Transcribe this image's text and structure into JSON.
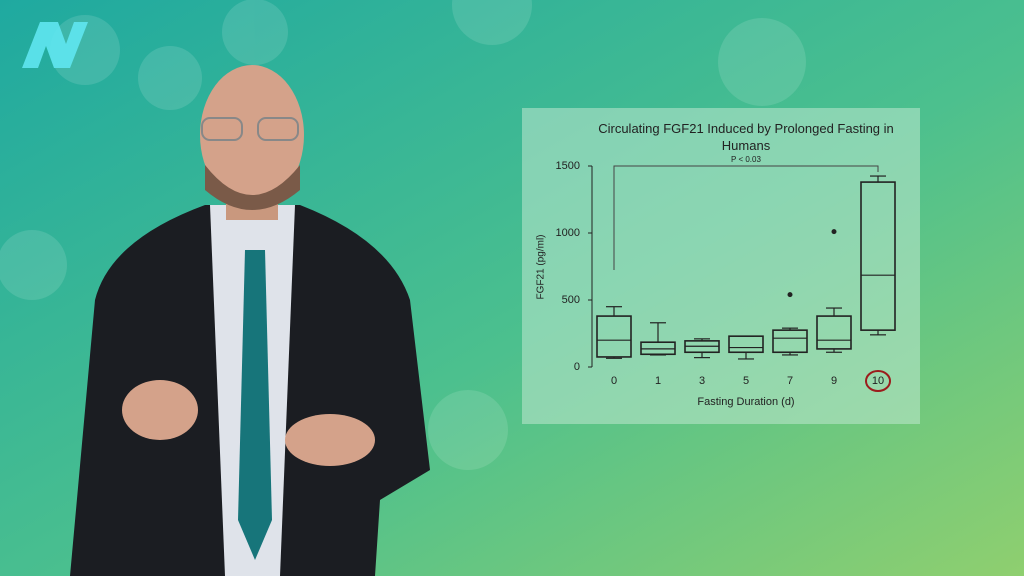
{
  "chart_data": {
    "type": "box",
    "title": "Circulating FGF21 Induced by Prolonged Fasting in Humans",
    "xlabel": "Fasting Duration (d)",
    "ylabel": "FGF21 (pg/ml)",
    "annotation": "P < 0.03",
    "categories": [
      "0",
      "1",
      "3",
      "5",
      "7",
      "9",
      "10"
    ],
    "boxes": [
      {
        "min": 65,
        "q1": 75,
        "median": 200,
        "q3": 380,
        "max": 450,
        "outliers": []
      },
      {
        "min": 90,
        "q1": 95,
        "median": 135,
        "q3": 185,
        "max": 330,
        "outliers": []
      },
      {
        "min": 70,
        "q1": 110,
        "median": 155,
        "q3": 195,
        "max": 210,
        "outliers": []
      },
      {
        "min": 60,
        "q1": 110,
        "median": 145,
        "q3": 230,
        "max": 230,
        "outliers": []
      },
      {
        "min": 90,
        "q1": 110,
        "median": 215,
        "q3": 275,
        "max": 290,
        "outliers": [
          540
        ]
      },
      {
        "min": 110,
        "q1": 135,
        "median": 200,
        "q3": 380,
        "max": 440,
        "outliers": [
          1010
        ]
      },
      {
        "min": 240,
        "q1": 275,
        "median": 685,
        "q3": 1380,
        "max": 1425,
        "outliers": []
      }
    ],
    "color": "#222222",
    "highlight_color": "#9b1c1c",
    "ylim": [
      0,
      1500
    ],
    "yticks": [
      0,
      500,
      1000,
      1500
    ]
  }
}
